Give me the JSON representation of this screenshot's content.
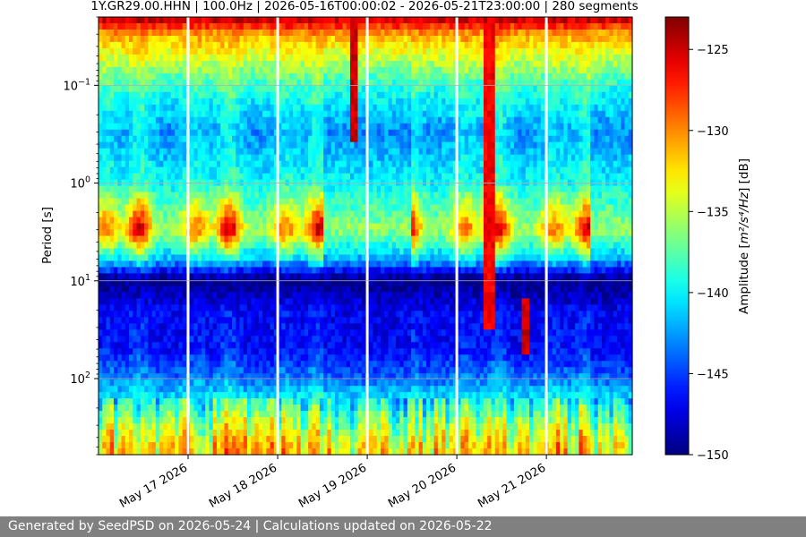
{
  "footer": "Generated by SeedPSD on 2026-05-24 | Calculations updated on 2026-05-22",
  "chart_data": {
    "type": "heatmap",
    "title": "1Y.GR29.00.HHN | 100.0Hz | 2026-05-16T00:00:02 - 2026-05-21T23:00:00 | 280 segments",
    "ylabel": "Period [s]",
    "xlabel": "",
    "x_range": [
      "2026-05-16T00:00:02",
      "2026-05-21T23:00:00"
    ],
    "x_ticks": [
      {
        "date": "2026-05-17",
        "label": "May 17 2026"
      },
      {
        "date": "2026-05-18",
        "label": "May 18 2026"
      },
      {
        "date": "2026-05-19",
        "label": "May 19 2026"
      },
      {
        "date": "2026-05-20",
        "label": "May 20 2026"
      },
      {
        "date": "2026-05-21",
        "label": "May 21 2026"
      }
    ],
    "y_scale": "log",
    "y_inverted": true,
    "y_range_s": [
      0.02,
      600
    ],
    "y_ticks": [
      {
        "value": 0.1,
        "base": "10",
        "exp": "−1"
      },
      {
        "value": 1,
        "base": "10",
        "exp": "0"
      },
      {
        "value": 10,
        "base": "10",
        "exp": "1"
      },
      {
        "value": 100,
        "base": "10",
        "exp": "2"
      }
    ],
    "grid": true,
    "colormap": "jet",
    "colorbar": {
      "label_prefix": "Amplitude [",
      "label_math": "m²/s⁴/Hz",
      "label_suffix": "] [dB]",
      "range": [
        -150,
        -123
      ],
      "ticks": [
        -125,
        -130,
        -135,
        -140,
        -145,
        -150
      ],
      "tick_labels": [
        "−125",
        "−130",
        "−135",
        "−140",
        "−145",
        "−150"
      ]
    },
    "data_gaps": [
      "2026-05-17",
      "2026-05-18",
      "2026-05-19",
      "2026-05-20",
      "2026-05-21"
    ],
    "profile": {
      "periods_s": [
        0.02,
        0.03,
        0.1,
        0.3,
        1,
        3,
        6,
        9,
        10,
        20,
        50,
        100,
        200,
        300,
        500
      ],
      "quiet_db": [
        -124,
        -131,
        -139,
        -143,
        -140,
        -136,
        -142,
        -149,
        -150,
        -147,
        -147,
        -144,
        -139,
        -136,
        -133
      ],
      "active_db": [
        -124,
        -130,
        -137,
        -140,
        -138,
        -124,
        -138,
        -148,
        -150,
        -146,
        -145,
        -142,
        -137,
        -134,
        -131
      ]
    },
    "active_days": [
      "2026-05-16",
      "2026-05-17",
      "2026-05-18",
      "2026-05-20",
      "2026-05-21"
    ],
    "events": [
      {
        "start": "2026-05-20T07:00",
        "end": "2026-05-20T10:00",
        "period_s": [
          0.02,
          30
        ],
        "db": -126
      },
      {
        "start": "2026-05-20T17:00",
        "end": "2026-05-20T19:00",
        "period_s": [
          15,
          60
        ],
        "db": -125
      },
      {
        "start": "2026-05-18T19:00",
        "end": "2026-05-18T21:00",
        "period_s": [
          0.02,
          0.4
        ],
        "db": -125
      }
    ]
  }
}
